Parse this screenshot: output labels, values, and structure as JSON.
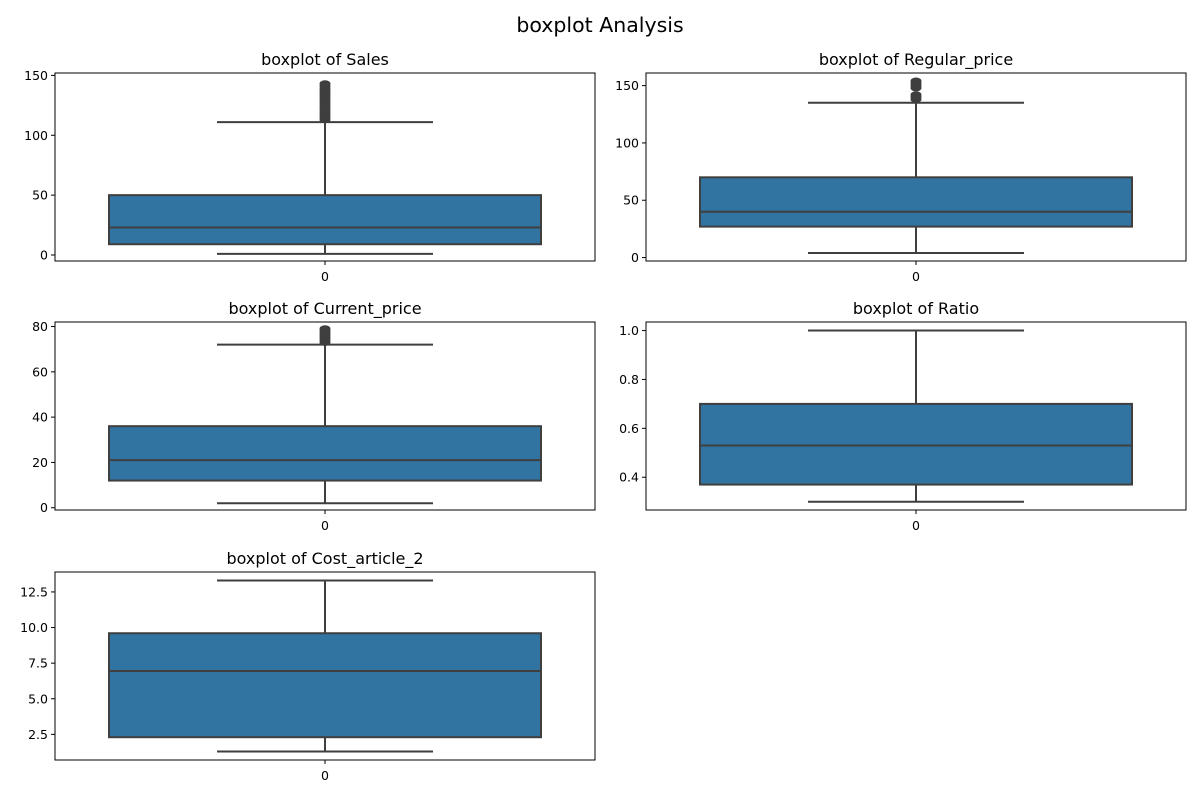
{
  "figure": {
    "title": "boxplot Analysis"
  },
  "chart_data": [
    {
      "type": "box",
      "title": "boxplot of Sales",
      "xlabel": "",
      "ylabel": "",
      "categories": [
        "0"
      ],
      "ylim": [
        -5,
        152
      ],
      "yticks": [
        0,
        50,
        100,
        150
      ],
      "yticklabels": [
        "0",
        "50",
        "100",
        "150"
      ],
      "stats": {
        "whislo": 1,
        "q1": 9,
        "med": 23,
        "q3": 50,
        "whishi": 111
      },
      "fliers": [
        113,
        115,
        117,
        119,
        121,
        123,
        125,
        127,
        129,
        131,
        133,
        135,
        137,
        139,
        141,
        143
      ]
    },
    {
      "type": "box",
      "title": "boxplot of Regular_price",
      "xlabel": "",
      "ylabel": "",
      "categories": [
        "0"
      ],
      "ylim": [
        -3,
        161
      ],
      "yticks": [
        0,
        50,
        100,
        150
      ],
      "yticklabels": [
        "0",
        "50",
        "100",
        "150"
      ],
      "stats": {
        "whislo": 4,
        "q1": 27,
        "med": 40,
        "q3": 70,
        "whishi": 135
      },
      "fliers": [
        138,
        140,
        142,
        148,
        150,
        152,
        154
      ]
    },
    {
      "type": "box",
      "title": "boxplot of Current_price",
      "xlabel": "",
      "ylabel": "",
      "categories": [
        "0"
      ],
      "ylim": [
        -1,
        82
      ],
      "yticks": [
        0,
        20,
        40,
        60,
        80
      ],
      "yticklabels": [
        "0",
        "20",
        "40",
        "60",
        "80"
      ],
      "stats": {
        "whislo": 2,
        "q1": 12,
        "med": 21,
        "q3": 36,
        "whishi": 72
      },
      "fliers": [
        73,
        74,
        75,
        76,
        77,
        78,
        79
      ]
    },
    {
      "type": "box",
      "title": "boxplot of Ratio",
      "xlabel": "",
      "ylabel": "",
      "categories": [
        "0"
      ],
      "ylim": [
        0.266,
        1.035
      ],
      "yticks": [
        0.4,
        0.6,
        0.8,
        1.0
      ],
      "yticklabels": [
        "0.4",
        "0.6",
        "0.8",
        "1.0"
      ],
      "stats": {
        "whislo": 0.3,
        "q1": 0.37,
        "med": 0.53,
        "q3": 0.7,
        "whishi": 1.0
      },
      "fliers": []
    },
    {
      "type": "box",
      "title": "boxplot of Cost_article_2",
      "xlabel": "",
      "ylabel": "",
      "categories": [
        "0"
      ],
      "ylim": [
        0.7,
        13.9
      ],
      "yticks": [
        2.5,
        5.0,
        7.5,
        10.0,
        12.5
      ],
      "yticklabels": [
        "2.5",
        "5.0",
        "7.5",
        "10.0",
        "12.5"
      ],
      "stats": {
        "whislo": 1.3,
        "q1": 2.3,
        "med": 6.95,
        "q3": 9.6,
        "whishi": 13.3
      },
      "fliers": []
    }
  ]
}
